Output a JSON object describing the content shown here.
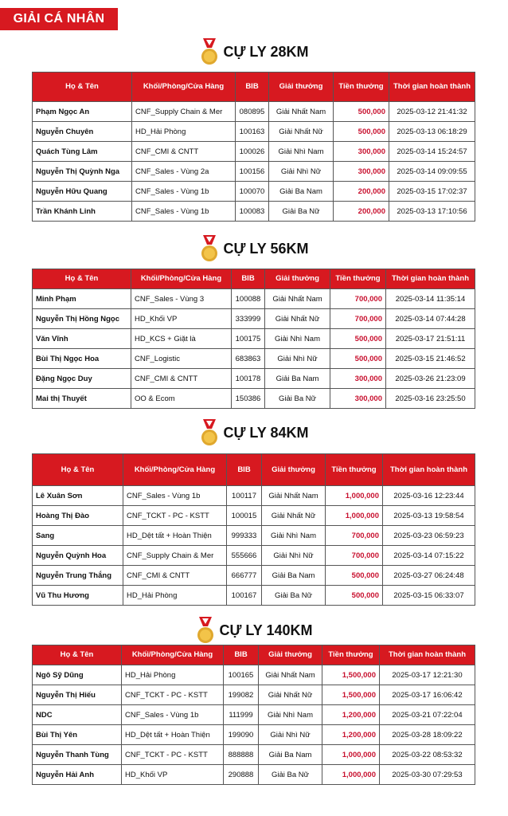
{
  "header": {
    "title": "GIẢI CÁ NHÂN"
  },
  "sections": [
    {
      "title": "CỰ LY 28KM",
      "columns": [
        "Họ & Tên",
        "Khối/Phòng/Cửa Hàng",
        "BIB",
        "Giải thưởng",
        "Tiền thưởng",
        "Thời gian hoàn thành"
      ],
      "rows": [
        [
          "Phạm Ngọc An",
          "CNF_Supply Chain & Mer",
          "080895",
          "Giải Nhất Nam",
          "500,000",
          "2025-03-12 21:41:32"
        ],
        [
          "Nguyễn Chuyên",
          "HD_Hải Phòng",
          "100163",
          "Giải Nhất Nữ",
          "500,000",
          "2025-03-13 06:18:29"
        ],
        [
          "Quách Tùng Lâm",
          "CNF_CMI & CNTT",
          "100026",
          "Giải Nhì Nam",
          "300,000",
          "2025-03-14 15:24:57"
        ],
        [
          "Nguyễn Thị Quỳnh Nga",
          "CNF_Sales - Vùng 2a",
          "100156",
          "Giải Nhì Nữ",
          "300,000",
          "2025-03-14 09:09:55"
        ],
        [
          "Nguyễn Hữu Quang",
          "CNF_Sales - Vùng 1b",
          "100070",
          "Giải Ba Nam",
          "200,000",
          "2025-03-15 17:02:37"
        ],
        [
          "Trần Khánh Linh",
          "CNF_Sales - Vùng 1b",
          "100083",
          "Giải Ba Nữ",
          "200,000",
          "2025-03-13 17:10:56"
        ]
      ]
    },
    {
      "title": "CỰ LY 56KM",
      "columns": [
        "Họ & Tên",
        "Khối/Phòng/Cửa Hàng",
        "BIB",
        "Giải thưởng",
        "Tiền thưởng",
        "Thời gian hoàn thành"
      ],
      "rows": [
        [
          "Minh Phạm",
          "CNF_Sales - Vùng 3",
          "100088",
          "Giải Nhất Nam",
          "700,000",
          "2025-03-14 11:35:14"
        ],
        [
          "Nguyễn Thị Hồng Ngọc",
          "HD_Khối VP",
          "333999",
          "Giải Nhất Nữ",
          "700,000",
          "2025-03-14 07:44:28"
        ],
        [
          "Văn Vĩnh",
          "HD_KCS + Giặt là",
          "100175",
          "Giải Nhì Nam",
          "500,000",
          "2025-03-17 21:51:11"
        ],
        [
          "Bùi Thị Ngọc Hoa",
          "CNF_Logistic",
          "683863",
          "Giải Nhì Nữ",
          "500,000",
          "2025-03-15 21:46:52"
        ],
        [
          "Đặng Ngọc Duy",
          "CNF_CMI & CNTT",
          "100178",
          "Giải Ba Nam",
          "300,000",
          "2025-03-26 21:23:09"
        ],
        [
          "Mai thị Thuyết",
          "OO & Ecom",
          "150386",
          "Giải Ba Nữ",
          "300,000",
          "2025-03-16 23:25:50"
        ]
      ]
    },
    {
      "title": "CỰ LY 84KM",
      "columns": [
        "Họ & Tên",
        "Khối/Phòng/Cửa Hàng",
        "BIB",
        "Giải thưởng",
        "Tiền thưởng",
        "Thời gian hoàn thành"
      ],
      "rows": [
        [
          "Lê Xuân Sơn",
          "CNF_Sales - Vùng 1b",
          "100117",
          "Giải Nhất Nam",
          "1,000,000",
          "2025-03-16 12:23:44"
        ],
        [
          "Hoàng Thị Đào",
          "CNF_TCKT - PC - KSTT",
          "100015",
          "Giải Nhất Nữ",
          "1,000,000",
          "2025-03-13 19:58:54"
        ],
        [
          "Sang",
          "HD_Dệt tất + Hoàn Thiện",
          "999333",
          "Giải Nhì Nam",
          "700,000",
          "2025-03-23 06:59:23"
        ],
        [
          "Nguyễn Quỳnh Hoa",
          "CNF_Supply Chain & Mer",
          "555666",
          "Giải Nhì Nữ",
          "700,000",
          "2025-03-14 07:15:22"
        ],
        [
          "Nguyễn Trung Thắng",
          "CNF_CMI & CNTT",
          "666777",
          "Giải Ba Nam",
          "500,000",
          "2025-03-27 06:24:48"
        ],
        [
          "Vũ Thu Hương",
          "HD_Hải Phòng",
          "100167",
          "Giải Ba Nữ",
          "500,000",
          "2025-03-15 06:33:07"
        ]
      ]
    },
    {
      "title": "CỰ LY 140KM",
      "columns": [
        "Họ & Tên",
        "Khối/Phòng/Cửa Hàng",
        "BIB",
        "Giải thưởng",
        "Tiền thưởng",
        "Thời gian hoàn thành"
      ],
      "rows": [
        [
          "Ngô Sỹ Dũng",
          "HD_Hải Phòng",
          "100165",
          "Giải Nhất Nam",
          "1,500,000",
          "2025-03-17 12:21:30"
        ],
        [
          "Nguyễn Thị Hiếu",
          "CNF_TCKT - PC - KSTT",
          "199082",
          "Giải Nhất Nữ",
          "1,500,000",
          "2025-03-17 16:06:42"
        ],
        [
          "NDC",
          "CNF_Sales - Vùng 1b",
          "111999",
          "Giải Nhì Nam",
          "1,200,000",
          "2025-03-21 07:22:04"
        ],
        [
          "Bùi Thị Yên",
          "HD_Dệt tất + Hoàn Thiện",
          "199090",
          "Giải Nhì Nữ",
          "1,200,000",
          "2025-03-28 18:09:22"
        ],
        [
          "Nguyễn Thanh Tùng",
          "CNF_TCKT - PC - KSTT",
          "888888",
          "Giải Ba Nam",
          "1,000,000",
          "2025-03-22 08:53:32"
        ],
        [
          "Nguyễn Hải Anh",
          "HD_Khối VP",
          "290888",
          "Giải Ba Nữ",
          "1,000,000",
          "2025-03-30 07:29:53"
        ]
      ]
    }
  ]
}
